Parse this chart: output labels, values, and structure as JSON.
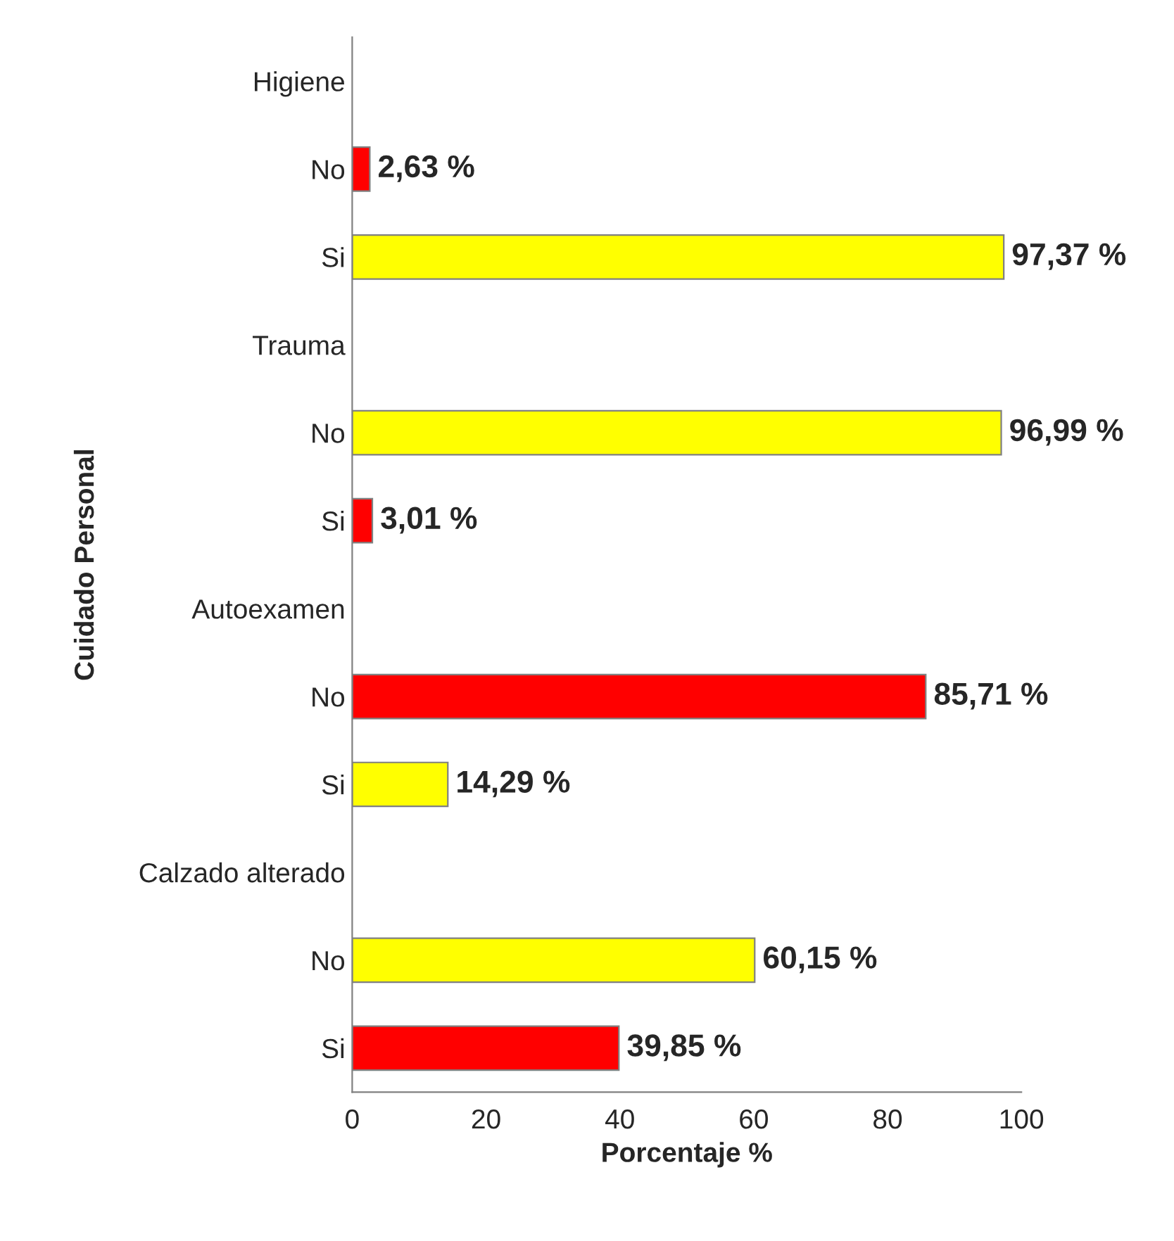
{
  "chart_data": {
    "type": "bar",
    "orientation": "horizontal",
    "xlabel": "Porcentaje %",
    "ylabel": "Cuidado Personal",
    "categories": [
      "Higiene",
      "No",
      "Si",
      "Trauma",
      "No",
      "Si",
      "Autoexamen",
      "No",
      "Si",
      "Calzado alterado",
      "No",
      "Si"
    ],
    "values": [
      null,
      2.63,
      97.37,
      null,
      96.99,
      3.01,
      null,
      85.71,
      14.29,
      null,
      60.15,
      39.85
    ],
    "colors": [
      null,
      "#ff0000",
      "#ffff00",
      null,
      "#ffff00",
      "#ff0000",
      null,
      "#ff0000",
      "#ffff00",
      null,
      "#ffff00",
      "#ff0000"
    ],
    "value_labels": [
      null,
      "2,63 %",
      "97,37 %",
      null,
      "96,99 %",
      "3,01 %",
      null,
      "85,71 %",
      "14,29 %",
      null,
      "60,15 %",
      "39,85 %"
    ],
    "xlim": [
      0,
      100
    ],
    "xticks": [
      0,
      20,
      40,
      60,
      80,
      100
    ],
    "grid": false,
    "legend": false
  }
}
